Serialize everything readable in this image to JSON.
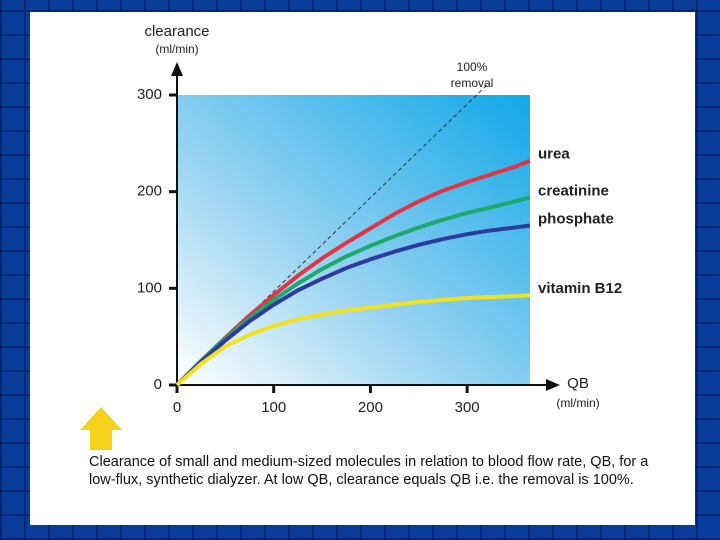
{
  "chart_data": {
    "type": "line",
    "y_label": "clearance",
    "y_unit": "(ml/min)",
    "x_label": "QB",
    "x_unit": "(ml/min)",
    "annotation": [
      "100%",
      "removal"
    ],
    "x": [
      0,
      25,
      50,
      75,
      100,
      125,
      150,
      175,
      200,
      225,
      250,
      275,
      300,
      325,
      350,
      365
    ],
    "series": [
      {
        "name": "urea",
        "color": "#e03545",
        "values": [
          0,
          25,
          49,
          72,
          93,
          113,
          131,
          147,
          162,
          177,
          190,
          201,
          210,
          218,
          226,
          232
        ]
      },
      {
        "name": "creatinine",
        "color": "#1ea86a",
        "values": [
          0,
          25,
          48,
          69,
          88,
          105,
          120,
          133,
          144,
          154,
          163,
          171,
          178,
          184,
          190,
          194
        ]
      },
      {
        "name": "phosphate",
        "color": "#2e3a9e",
        "values": [
          0,
          24,
          46,
          66,
          83,
          98,
          110,
          121,
          130,
          138,
          145,
          151,
          156,
          160,
          163,
          165
        ]
      },
      {
        "name": "vitamin B12",
        "color": "#f2e21e",
        "values": [
          0,
          22,
          40,
          52,
          61,
          68,
          73,
          77,
          80,
          83,
          86,
          88,
          90,
          91,
          92,
          93
        ]
      }
    ],
    "xlim": [
      0,
      365
    ],
    "ylim": [
      0,
      300
    ],
    "xticks": [
      0,
      100,
      200,
      300
    ],
    "yticks": [
      0,
      100,
      200,
      300
    ],
    "caption": "Clearance of small and medium-sized molecules in relation to blood flow rate, QB, for a low-flux, synthetic dialyzer. At low QB, clearance equals QB i.e. the removal is 100%."
  }
}
